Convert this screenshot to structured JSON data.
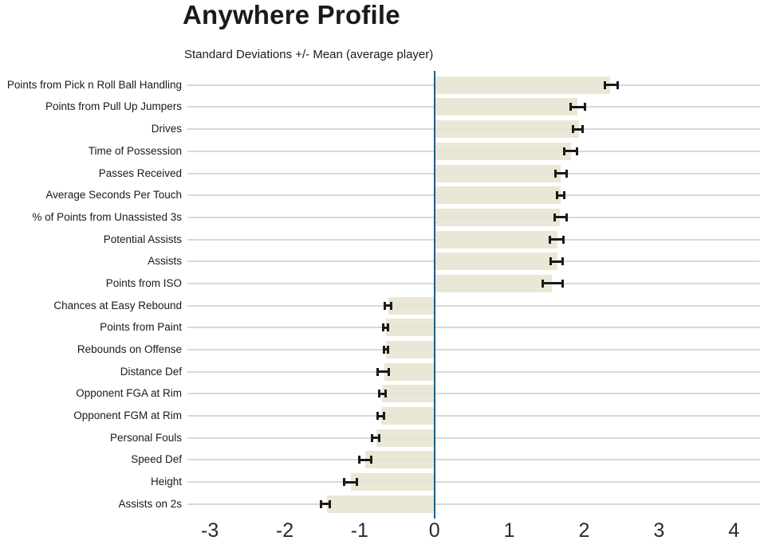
{
  "header": {
    "title": "Anywhere Profile",
    "subtitle": "Standard Deviations +/- Mean (average player)"
  },
  "colors": {
    "background": "#ffffff",
    "bar_fill": "#e8e4d0",
    "zero_line": "#1d5c87",
    "gridline": "#d9d9d9",
    "error_bar": "#1a1a1a",
    "label_text": "#1a1a1a",
    "tick_text": "#2b2b2b"
  },
  "chart_data": {
    "type": "bar",
    "orientation": "horizontal",
    "title": "Anywhere Profile",
    "subtitle": "Standard Deviations +/- Mean (average player)",
    "xlabel": "",
    "ylabel": "",
    "xlim": [
      -3.3,
      4.35
    ],
    "x_ticks": [
      "-3",
      "-2",
      "-1",
      "0",
      "1",
      "2",
      "3",
      "4"
    ],
    "x_tick_values": [
      -3,
      -2,
      -1,
      0,
      1,
      2,
      3,
      4
    ],
    "grid": "horizontal-row-lines",
    "zero_reference_line": 0,
    "legend": "none",
    "categories": [
      "Points from Pick n Roll Ball Handling",
      "Points from Pull Up Jumpers",
      "Drives",
      "Time of Possession",
      "Passes Received",
      "Average Seconds Per Touch",
      "% of Points from Unassisted 3s",
      "Potential Assists",
      "Assists",
      "Points from ISO",
      "Chances at Easy Rebound",
      "Points from Paint",
      "Rebounds on Offense",
      "Distance Def",
      "Opponent FGA at Rim",
      "Opponent FGM at Rim",
      "Personal Fouls",
      "Speed Def",
      "Height",
      "Assists on 2s"
    ],
    "values": [
      2.35,
      1.91,
      1.93,
      1.83,
      1.69,
      1.69,
      1.68,
      1.64,
      1.64,
      1.57,
      -0.62,
      -0.65,
      -0.65,
      -0.67,
      -0.7,
      -0.71,
      -0.78,
      -0.92,
      -1.12,
      -1.44
    ],
    "error_low": [
      2.27,
      1.81,
      1.85,
      1.73,
      1.61,
      1.63,
      1.6,
      1.54,
      1.55,
      1.44,
      -0.67,
      -0.69,
      -0.68,
      -0.76,
      -0.74,
      -0.76,
      -0.84,
      -1.01,
      -1.21,
      -1.52
    ],
    "error_high": [
      2.45,
      2.02,
      1.99,
      1.91,
      1.77,
      1.74,
      1.77,
      1.73,
      1.72,
      1.72,
      -0.57,
      -0.62,
      -0.62,
      -0.6,
      -0.65,
      -0.67,
      -0.73,
      -0.84,
      -1.03,
      -1.39
    ]
  }
}
